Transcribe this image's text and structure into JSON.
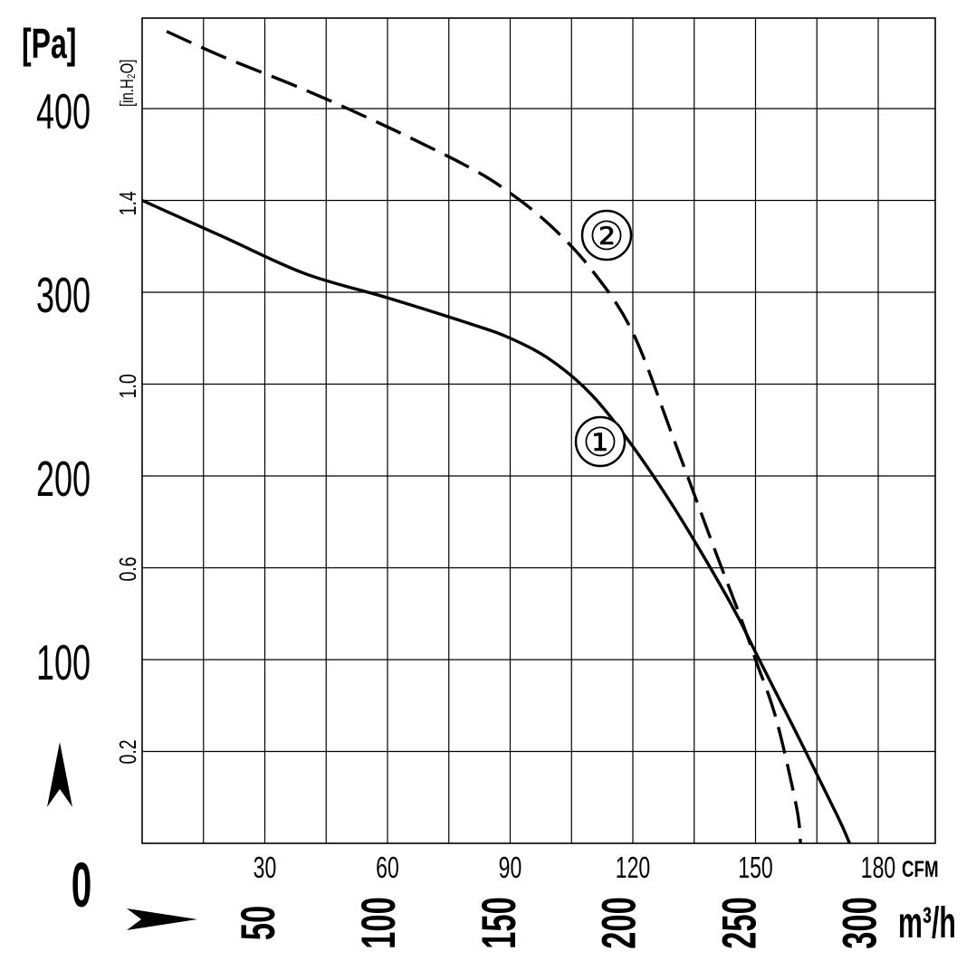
{
  "chart_data": {
    "type": "line",
    "title": "",
    "y_unit_primary": "[Pa]",
    "y_unit_secondary": "[in.H₂O]",
    "x_unit_primary": "CFM",
    "x_unit_secondary": "m³/h",
    "origin_label": "0",
    "xlim": [
      0,
      190
    ],
    "ylim": [
      0,
      450
    ],
    "pa_ticks": [
      {
        "value": 100,
        "label": "100"
      },
      {
        "value": 200,
        "label": "200"
      },
      {
        "value": 300,
        "label": "300"
      },
      {
        "value": 400,
        "label": "400"
      }
    ],
    "inh2o_ticks": [
      {
        "value": 0.2,
        "label": "0.2"
      },
      {
        "value": 0.6,
        "label": "0.6"
      },
      {
        "value": 1.0,
        "label": "1.0"
      },
      {
        "value": 1.4,
        "label": "1.4"
      }
    ],
    "cfm_ticks": [
      {
        "value": 30,
        "label": "30"
      },
      {
        "value": 60,
        "label": "60"
      },
      {
        "value": 90,
        "label": "90"
      },
      {
        "value": 120,
        "label": "120"
      },
      {
        "value": 150,
        "label": "150"
      },
      {
        "value": 180,
        "label": "180"
      }
    ],
    "m3h_ticks": [
      {
        "value": 50,
        "label": "50"
      },
      {
        "value": 100,
        "label": "100"
      },
      {
        "value": 150,
        "label": "150"
      },
      {
        "value": 200,
        "label": "200"
      },
      {
        "value": 250,
        "label": "250"
      },
      {
        "value": 300,
        "label": "300"
      }
    ],
    "grid": true,
    "series": [
      {
        "name": "①",
        "style": "solid",
        "color": "#000000",
        "points": [
          [
            0,
            350
          ],
          [
            20,
            330
          ],
          [
            40,
            310
          ],
          [
            60,
            297
          ],
          [
            80,
            283
          ],
          [
            90,
            275
          ],
          [
            100,
            263
          ],
          [
            110,
            244
          ],
          [
            120,
            216
          ],
          [
            130,
            183
          ],
          [
            140,
            146
          ],
          [
            146,
            122
          ],
          [
            150,
            104
          ],
          [
            160,
            60
          ],
          [
            170,
            15
          ],
          [
            173,
            0
          ]
        ]
      },
      {
        "name": "②",
        "style": "dashed",
        "color": "#000000",
        "points": [
          [
            6,
            442
          ],
          [
            20,
            428
          ],
          [
            40,
            410
          ],
          [
            60,
            390
          ],
          [
            80,
            368
          ],
          [
            90,
            354
          ],
          [
            100,
            336
          ],
          [
            110,
            312
          ],
          [
            120,
            278
          ],
          [
            130,
            220
          ],
          [
            140,
            160
          ],
          [
            146,
            125
          ],
          [
            150,
            100
          ],
          [
            155,
            68
          ],
          [
            160,
            20
          ],
          [
            161,
            0
          ]
        ]
      }
    ]
  }
}
